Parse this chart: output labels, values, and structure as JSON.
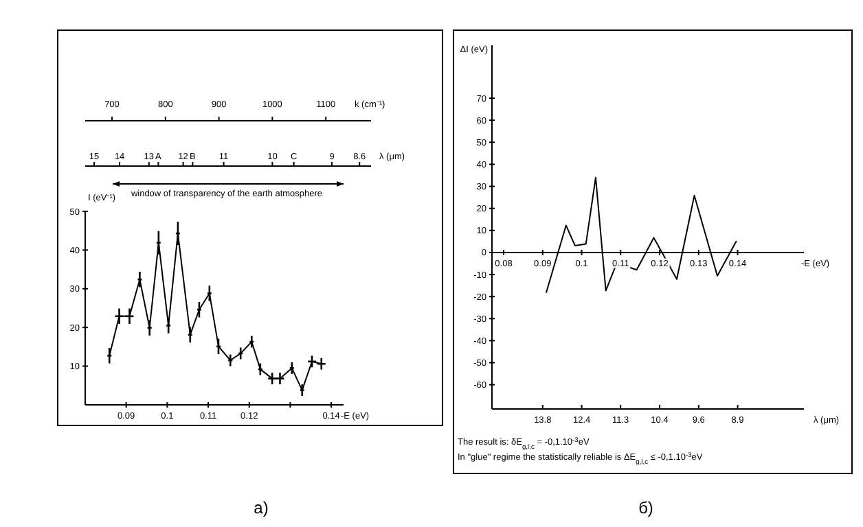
{
  "chart_data": [
    {
      "type": "line",
      "title": "а)",
      "xlabel": "-E (eV)",
      "ylabel": "I (eV⁻¹)",
      "marker": "none",
      "line_style": "solid",
      "grid": false,
      "color": "#000000",
      "x": [
        0.0859,
        0.0883,
        0.0908,
        0.0933,
        0.0957,
        0.0979,
        0.1003,
        0.1026,
        0.1056,
        0.1078,
        0.1103,
        0.1125,
        0.1154,
        0.1179,
        0.1206,
        0.1227,
        0.1256,
        0.1275,
        0.1304,
        0.1329,
        0.1353,
        0.1376
      ],
      "values": [
        12.7,
        22.9,
        22.9,
        32.4,
        19.9,
        41.9,
        20.5,
        44.3,
        18.1,
        24.6,
        28.8,
        15.1,
        11.5,
        13.3,
        16.3,
        9.2,
        6.8,
        6.8,
        9.5,
        3.8,
        11.2,
        10.6
      ],
      "errors": [
        2,
        2,
        2,
        2,
        2,
        3,
        2,
        3,
        2,
        2,
        2,
        2,
        1.5,
        1.5,
        1.5,
        1.5,
        1.5,
        1.5,
        1.5,
        1.5,
        1.5,
        1.5
      ],
      "xerrors": [
        0.0005,
        0.001,
        0.001,
        0.0005,
        0.0005,
        0.0005,
        0.0005,
        0.0005,
        0.0005,
        0.0005,
        0.0005,
        0.0005,
        0.0005,
        0.0005,
        0.0005,
        0.0005,
        0.001,
        0.001,
        0.0005,
        0.0005,
        0.001,
        0.001
      ],
      "xlim": [
        0.08,
        0.143
      ],
      "xticks": [
        0.09,
        0.1,
        0.11,
        0.12,
        {
          "value": 0.13,
          "label": null
        },
        0.14
      ],
      "ylim": [
        0,
        50
      ],
      "yticks": [
        10,
        20,
        30,
        40,
        50
      ],
      "annotations": [
        "700",
        "800",
        "900",
        "1000",
        "1100",
        "k (cm⁻¹)",
        "15",
        "14",
        "13",
        "A",
        "12",
        "B",
        "11",
        "10",
        "C",
        "9",
        "8.6",
        "λ (μm)",
        "window of transparency of the earth atmosphere"
      ]
    },
    {
      "type": "line",
      "title": "б)",
      "xlabel": "-E (eV)",
      "ylabel": "ΔI (eV)",
      "marker": "none",
      "line_style": "solid",
      "grid": false,
      "color": "#000000",
      "x": [
        0.0909,
        0.096,
        0.0983,
        0.1011,
        0.1036,
        0.1062,
        0.109,
        0.1141,
        0.1185,
        0.1244,
        0.1289,
        0.1348,
        0.1397
      ],
      "values": [
        -18.3,
        12.3,
        3.1,
        3.9,
        34,
        -17.3,
        -4.8,
        -7.9,
        6.7,
        -12.1,
        25.8,
        -10.6,
        5.2
      ],
      "xlim": [
        0.077,
        0.157
      ],
      "xticks": [
        0.08,
        0.09,
        0.1,
        0.11,
        0.12,
        0.13,
        0.14
      ],
      "ylim": [
        -71,
        94
      ],
      "yticks": [
        -60,
        -50,
        -40,
        -30,
        -20,
        -10,
        0,
        10,
        20,
        30,
        40,
        50,
        60,
        70
      ],
      "annotations": [
        "13.8",
        "12.4",
        "11.3",
        "10.4",
        "9.6",
        "8.9",
        "λ (μm)",
        "The result is: δE$_{g,l,c}$ = -0,1.10$^{-3}$eV",
        "In \"glue\" regime the statistically reliable is ΔE$_{g,l,c}$ ≤ -0,1.10$^{-3}$eV"
      ]
    }
  ]
}
